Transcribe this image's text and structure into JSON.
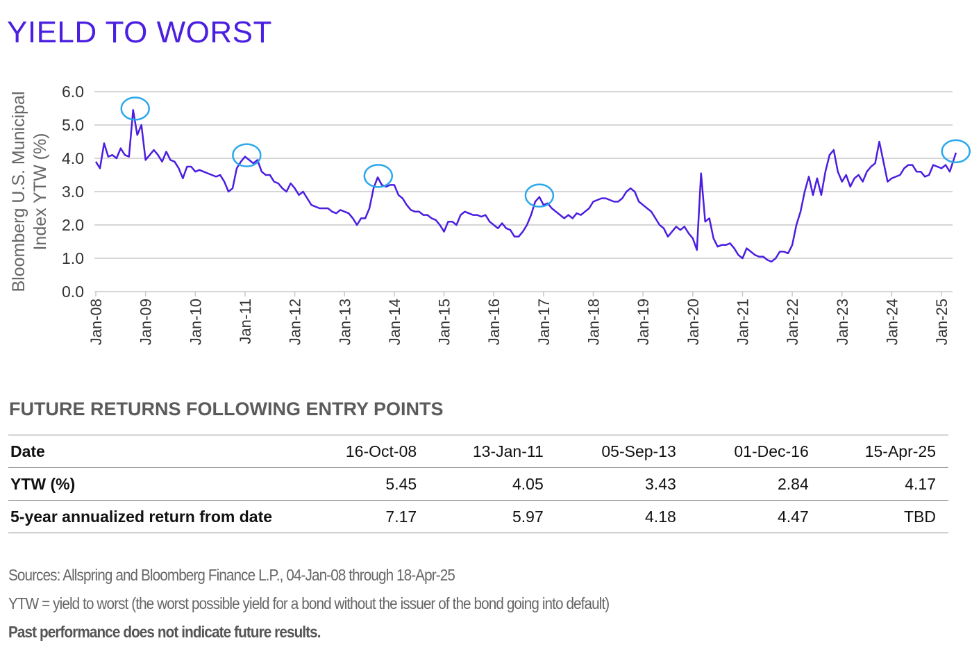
{
  "title": "YIELD TO WORST",
  "colors": {
    "title": "#4b1fe0",
    "line": "#4a1de0",
    "highlight": "#2aa8ec",
    "grid": "#c8c8c8"
  },
  "chart_data": {
    "type": "line",
    "ylabel": [
      "Bloomberg U.S. Municipal",
      "Index YTW (%)"
    ],
    "ylim": [
      0,
      6
    ],
    "yticks": [
      "0.0",
      "1.0",
      "2.0",
      "3.0",
      "4.0",
      "5.0",
      "6.0"
    ],
    "xticks": [
      "Jan-08",
      "Jan-09",
      "Jan-10",
      "Jan-11",
      "Jan-12",
      "Jan-13",
      "Jan-14",
      "Jan-15",
      "Jan-16",
      "Jan-17",
      "Jan-18",
      "Jan-19",
      "Jan-20",
      "Jan-21",
      "Jan-22",
      "Jan-23",
      "Jan-24",
      "Jan-25"
    ],
    "grid": "horizontal",
    "series_values_monthly_from": "2008-01",
    "values": [
      3.9,
      3.7,
      4.45,
      4.05,
      4.1,
      4.0,
      4.3,
      4.1,
      4.05,
      5.45,
      4.7,
      5.0,
      3.95,
      4.1,
      4.25,
      4.1,
      3.9,
      4.2,
      3.95,
      3.9,
      3.7,
      3.4,
      3.75,
      3.75,
      3.6,
      3.65,
      3.6,
      3.55,
      3.5,
      3.45,
      3.5,
      3.3,
      3.0,
      3.1,
      3.7,
      3.9,
      4.05,
      3.95,
      3.85,
      3.95,
      3.6,
      3.5,
      3.5,
      3.3,
      3.25,
      3.1,
      3.0,
      3.25,
      3.1,
      2.9,
      3.0,
      2.8,
      2.6,
      2.55,
      2.5,
      2.5,
      2.5,
      2.4,
      2.35,
      2.45,
      2.4,
      2.35,
      2.2,
      2.0,
      2.2,
      2.2,
      2.5,
      3.1,
      3.43,
      3.2,
      3.15,
      3.2,
      3.2,
      2.9,
      2.8,
      2.6,
      2.45,
      2.4,
      2.4,
      2.3,
      2.3,
      2.2,
      2.15,
      2.0,
      1.8,
      2.1,
      2.1,
      2.0,
      2.3,
      2.4,
      2.35,
      2.3,
      2.3,
      2.25,
      2.3,
      2.1,
      2.0,
      1.9,
      2.05,
      1.9,
      1.85,
      1.65,
      1.65,
      1.8,
      2.0,
      2.3,
      2.7,
      2.84,
      2.6,
      2.65,
      2.5,
      2.4,
      2.3,
      2.2,
      2.3,
      2.2,
      2.35,
      2.3,
      2.4,
      2.5,
      2.7,
      2.75,
      2.8,
      2.8,
      2.75,
      2.7,
      2.7,
      2.8,
      3.0,
      3.1,
      3.0,
      2.7,
      2.6,
      2.5,
      2.4,
      2.2,
      2.0,
      1.9,
      1.65,
      1.8,
      1.95,
      1.85,
      1.95,
      1.75,
      1.6,
      1.25,
      3.55,
      2.1,
      2.2,
      1.6,
      1.35,
      1.4,
      1.4,
      1.45,
      1.3,
      1.1,
      1.0,
      1.3,
      1.2,
      1.1,
      1.05,
      1.05,
      0.95,
      0.9,
      1.0,
      1.2,
      1.2,
      1.15,
      1.4,
      2.0,
      2.4,
      3.0,
      3.45,
      2.9,
      3.4,
      2.9,
      3.6,
      4.1,
      4.25,
      3.6,
      3.3,
      3.5,
      3.15,
      3.4,
      3.5,
      3.3,
      3.6,
      3.75,
      3.85,
      4.5,
      3.9,
      3.3,
      3.4,
      3.45,
      3.5,
      3.7,
      3.8,
      3.8,
      3.6,
      3.6,
      3.45,
      3.5,
      3.8,
      3.75,
      3.7,
      3.8,
      3.6,
      4.17
    ],
    "highlights": [
      {
        "date": "16-Oct-08",
        "value": 5.45
      },
      {
        "date": "13-Jan-11",
        "value": 4.05
      },
      {
        "date": "05-Sep-13",
        "value": 3.43
      },
      {
        "date": "01-Dec-16",
        "value": 2.84
      },
      {
        "date": "15-Apr-25",
        "value": 4.17
      }
    ]
  },
  "table": {
    "title": "FUTURE RETURNS FOLLOWING ENTRY POINTS",
    "rows": [
      {
        "label": "Date",
        "cells": [
          "16-Oct-08",
          "13-Jan-11",
          "05-Sep-13",
          "01-Dec-16",
          "15-Apr-25"
        ]
      },
      {
        "label": "YTW (%)",
        "cells": [
          "5.45",
          "4.05",
          "3.43",
          "2.84",
          "4.17"
        ]
      },
      {
        "label": "5-year annualized return from date",
        "cells": [
          "7.17",
          "5.97",
          "4.18",
          "4.47",
          "TBD"
        ]
      }
    ]
  },
  "footnotes": {
    "sources": "Sources: Allspring and Bloomberg Finance L.P., 04-Jan-08 through 18-Apr-25",
    "definition": "YTW = yield to worst (the worst possible yield for a bond without the issuer of the bond going into default)",
    "disclaimer": "Past performance does not indicate future results."
  }
}
